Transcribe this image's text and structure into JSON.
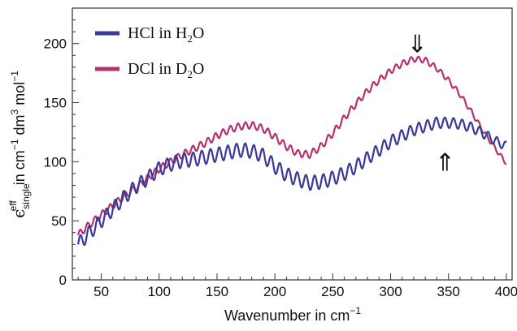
{
  "chart_data": {
    "type": "line",
    "xlabel": {
      "text": "Wavenumber in cm",
      "sup": "−1"
    },
    "ylabel": {
      "eps": "ϵ",
      "eps_sup": "eff",
      "eps_sub": "single",
      "p1": " in cm",
      "p1_sup": "−1",
      "p2": " dm",
      "p2_sup": "3",
      "p3": " mol",
      "p3_sup": "−1"
    },
    "xlim": [
      25,
      405
    ],
    "ylim": [
      0,
      230
    ],
    "xticks": [
      "50",
      "100",
      "150",
      "200",
      "250",
      "300",
      "350",
      "400"
    ],
    "yticks": [
      "0",
      "50",
      "100",
      "150",
      "200"
    ],
    "grid": false,
    "legend_position": "top-left",
    "arrows": [
      {
        "glyph": "⇓",
        "x": 323,
        "y": 200
      },
      {
        "glyph": "⇑",
        "x": 347,
        "y": 100
      }
    ],
    "series": [
      {
        "legend": {
          "pre": "HCl in H",
          "sub": "2",
          "post": "O"
        },
        "color": "#3a3a9a",
        "oscillation_amplitude": 6,
        "oscillation_period_cm": 7.5,
        "x": [
          30,
          40,
          50,
          60,
          70,
          80,
          90,
          100,
          110,
          120,
          130,
          140,
          150,
          160,
          170,
          180,
          190,
          200,
          210,
          220,
          230,
          240,
          250,
          260,
          270,
          280,
          290,
          300,
          310,
          320,
          330,
          340,
          350,
          360,
          370,
          380,
          390,
          400
        ],
        "y": [
          30,
          40,
          50,
          60,
          70,
          79,
          86,
          94,
          98,
          101,
          102,
          104,
          106,
          108,
          110,
          109,
          105,
          96,
          89,
          85,
          82,
          83,
          86,
          90,
          96,
          103,
          110,
          117,
          122,
          127,
          130,
          133,
          133,
          132,
          129,
          124,
          118,
          113
        ]
      },
      {
        "legend": {
          "pre": "DCl in D",
          "sub": "2",
          "post": "O"
        },
        "color": "#b5306e",
        "oscillation_amplitude": 3,
        "oscillation_period_cm": 6.5,
        "x": [
          30,
          40,
          50,
          60,
          70,
          80,
          90,
          100,
          110,
          120,
          130,
          140,
          150,
          160,
          170,
          180,
          190,
          200,
          210,
          220,
          230,
          240,
          250,
          260,
          270,
          280,
          290,
          300,
          310,
          320,
          330,
          340,
          350,
          360,
          370,
          380,
          390,
          395,
          400
        ],
        "y": [
          38,
          47,
          55,
          63,
          71,
          78,
          86,
          94,
          100,
          106,
          111,
          116,
          122,
          127,
          130,
          131,
          128,
          121,
          113,
          107,
          106,
          113,
          124,
          137,
          149,
          160,
          169,
          177,
          183,
          187,
          186,
          179,
          169,
          157,
          142,
          126,
          112,
          105,
          99
        ]
      }
    ]
  }
}
